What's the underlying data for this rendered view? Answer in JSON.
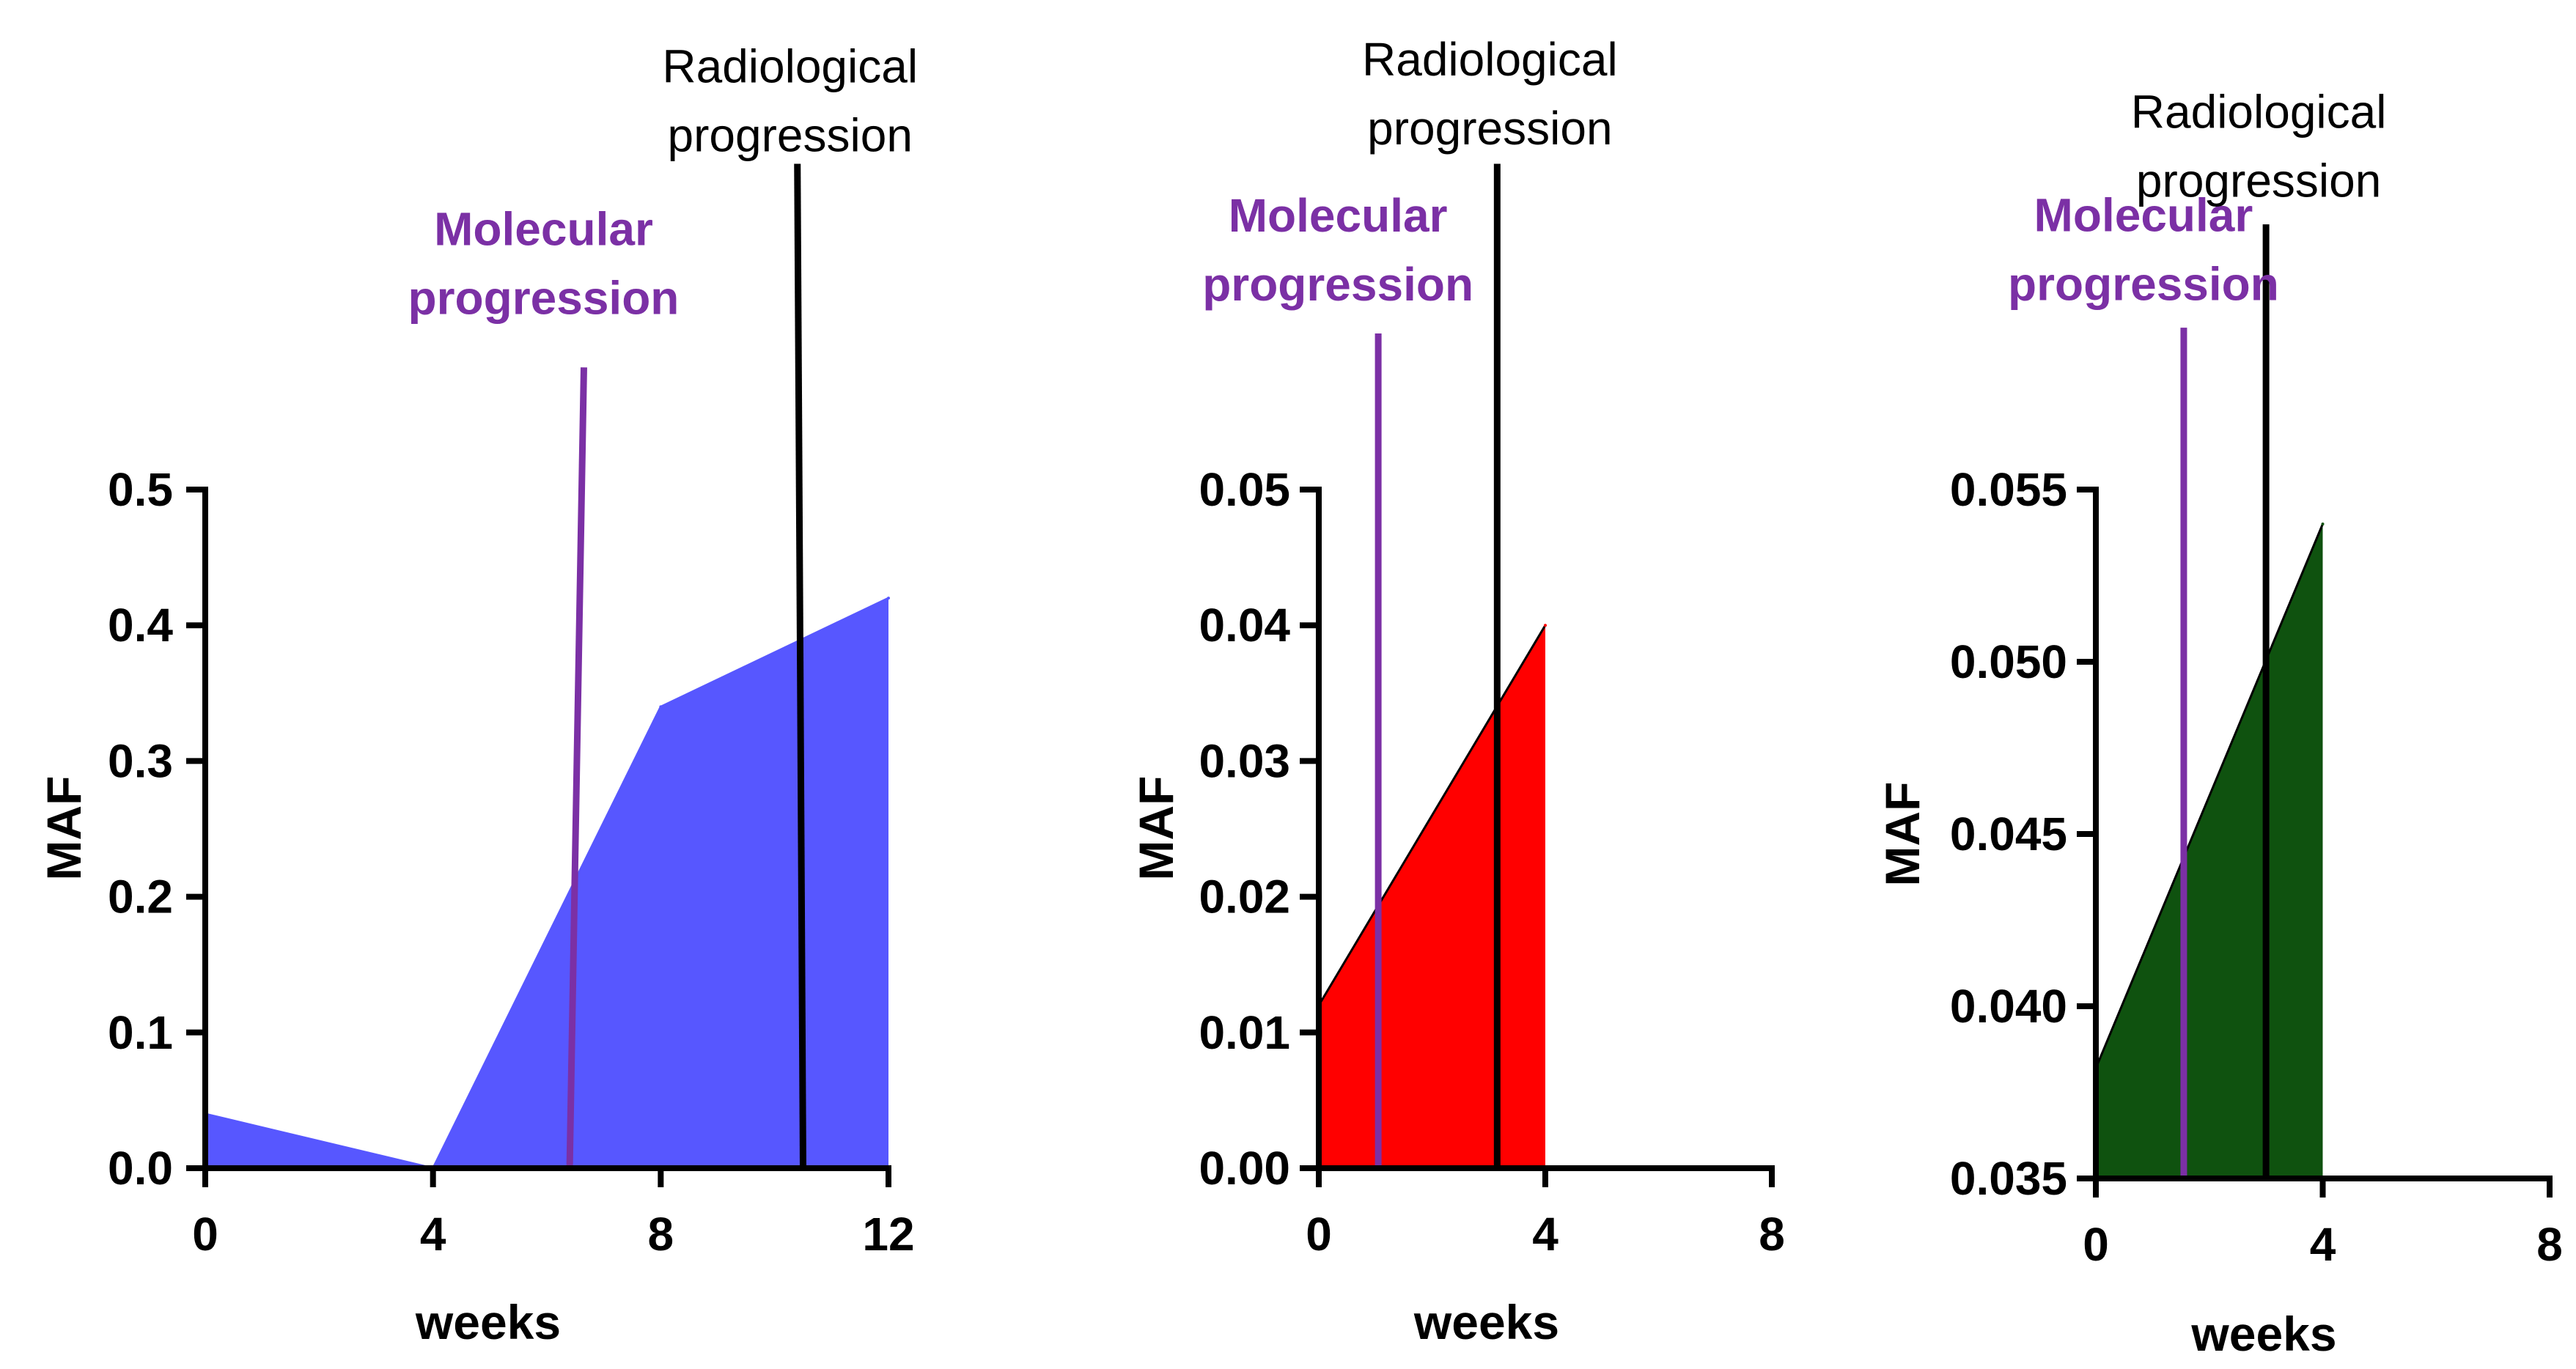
{
  "chart_data": [
    {
      "type": "area",
      "xlabel": "weeks",
      "ylabel": "MAF",
      "x": [
        0,
        4,
        8,
        12
      ],
      "values": [
        0.04,
        0.0,
        0.34,
        0.42
      ],
      "xlim": [
        0,
        12
      ],
      "ylim": [
        0,
        0.5
      ],
      "xticks": [
        0,
        4,
        8,
        12
      ],
      "xtick_labels": [
        "0",
        "4",
        "8",
        "12"
      ],
      "yticks": [
        0,
        0.1,
        0.2,
        0.3,
        0.4,
        0.5
      ],
      "ytick_labels": [
        "0.0",
        "0.1",
        "0.2",
        "0.3",
        "0.4",
        "0.5"
      ],
      "fill_color": "#5757ff",
      "annotations": [
        {
          "label_lines": [
            "Molecular",
            "progression"
          ],
          "x_bottom": 6.4,
          "x_top": 6.65,
          "y_top": 0.59,
          "color": "#7b30a5",
          "bold": true,
          "text_y": 0.68
        },
        {
          "label_lines": [
            "Radiological",
            "progression"
          ],
          "x_bottom": 10.5,
          "x_top": 10.4,
          "y_top": 0.74,
          "color": "#000000",
          "bold": false,
          "text_y": 0.8
        }
      ]
    },
    {
      "type": "area",
      "xlabel": "weeks",
      "ylabel": "MAF",
      "x": [
        0,
        4
      ],
      "values": [
        0.012,
        0.04
      ],
      "xlim": [
        0,
        8
      ],
      "ylim": [
        0,
        0.05
      ],
      "xticks": [
        0,
        4,
        8
      ],
      "xtick_labels": [
        "0",
        "4",
        "8"
      ],
      "yticks": [
        0,
        0.01,
        0.02,
        0.03,
        0.04,
        0.05
      ],
      "ytick_labels": [
        "0.00",
        "0.01",
        "0.02",
        "0.03",
        "0.04",
        "0.05"
      ],
      "fill_color": "#ff0000",
      "annotations": [
        {
          "label_lines": [
            "Molecular",
            "progression"
          ],
          "x_bottom": 1.05,
          "x_top": 1.05,
          "y_top": 0.0615,
          "color": "#7b30a5",
          "bold": true,
          "text_y": 0.069
        },
        {
          "label_lines": [
            "Radiological",
            "progression"
          ],
          "x_bottom": 3.15,
          "x_top": 3.15,
          "y_top": 0.074,
          "color": "#000000",
          "bold": false,
          "text_y": 0.0805
        }
      ]
    },
    {
      "type": "area",
      "xlabel": "weeks",
      "ylabel": "MAF",
      "x": [
        0,
        4
      ],
      "values": [
        0.0382,
        0.054
      ],
      "xlim": [
        0,
        8
      ],
      "ylim": [
        0.035,
        0.055
      ],
      "xticks": [
        0,
        4,
        8
      ],
      "xtick_labels": [
        "0",
        "4",
        "8"
      ],
      "yticks": [
        0.035,
        0.04,
        0.045,
        0.05,
        0.055
      ],
      "ytick_labels": [
        "0.035",
        "0.040",
        "0.045",
        "0.050",
        "0.055"
      ],
      "fill_color": "#0f520f",
      "annotations": [
        {
          "label_lines": [
            "Molecular",
            "progression"
          ],
          "x_bottom": 1.55,
          "x_top": 1.55,
          "y_top": 0.0597,
          "color": "#7b30a5",
          "bold": true,
          "text_y": 0.0625
        },
        {
          "label_lines": [
            "Radiological",
            "progression"
          ],
          "x_bottom": 3.0,
          "x_top": 3.0,
          "y_top": 0.0627,
          "color": "#000000",
          "bold": false,
          "text_y": 0.0655
        }
      ]
    }
  ]
}
